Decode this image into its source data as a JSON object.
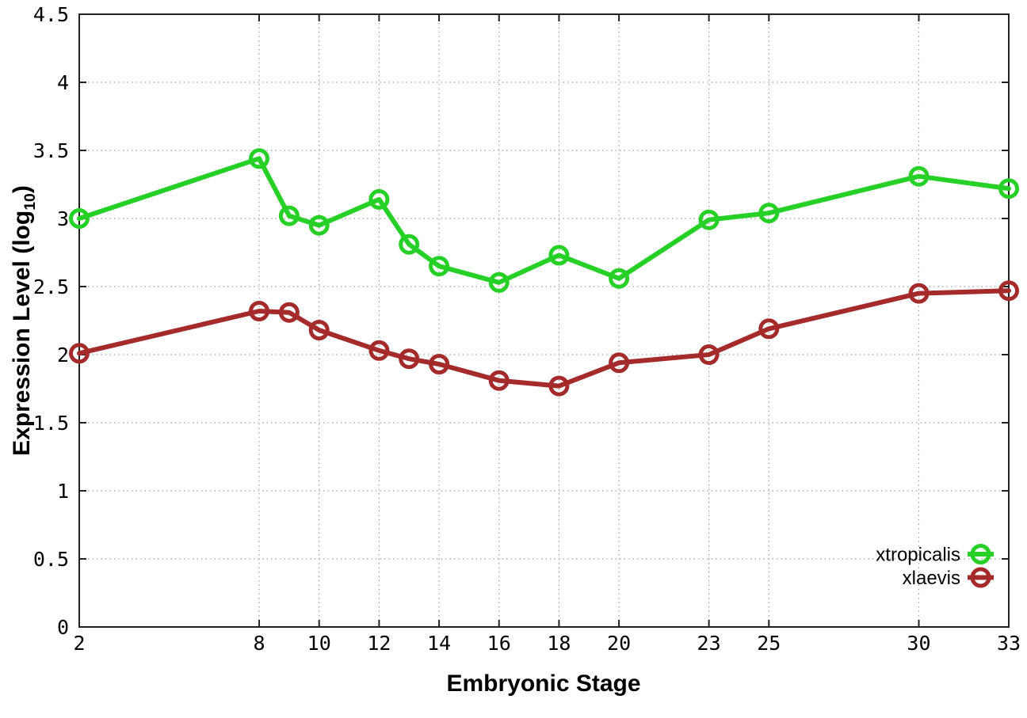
{
  "chart_data": {
    "type": "line",
    "xlabel": "Embryonic Stage",
    "ylabel": {
      "pre": "Expression Level (log",
      "sub": "10",
      "post": ")"
    },
    "x": [
      2,
      8,
      9,
      10,
      12,
      13,
      14,
      16,
      18,
      20,
      23,
      25,
      30,
      33
    ],
    "series": [
      {
        "name": "xtropicalis",
        "color": "#26d026",
        "values": [
          3.0,
          3.44,
          3.02,
          2.95,
          3.14,
          2.81,
          2.65,
          2.53,
          2.73,
          2.56,
          2.99,
          3.04,
          3.31,
          3.22
        ]
      },
      {
        "name": "xlaevis",
        "color": "#a52a2a",
        "values": [
          2.01,
          2.32,
          2.31,
          2.18,
          2.03,
          1.97,
          1.93,
          1.81,
          1.77,
          1.94,
          2.0,
          2.19,
          2.45,
          2.47
        ]
      }
    ],
    "xlim": [
      2,
      33
    ],
    "ylim": [
      0,
      4.5
    ],
    "xticks": [
      2,
      8,
      10,
      12,
      14,
      16,
      18,
      20,
      23,
      25,
      30,
      33
    ],
    "yticks": [
      0,
      0.5,
      1,
      1.5,
      2,
      2.5,
      3,
      3.5,
      4,
      4.5
    ],
    "grid": true,
    "legend_position": "bottom-right",
    "marker": "open-circle"
  },
  "colors": {
    "background": "#ffffff",
    "border": "#222222",
    "grid": "#a0a0a0",
    "tick_text": "#000000"
  }
}
